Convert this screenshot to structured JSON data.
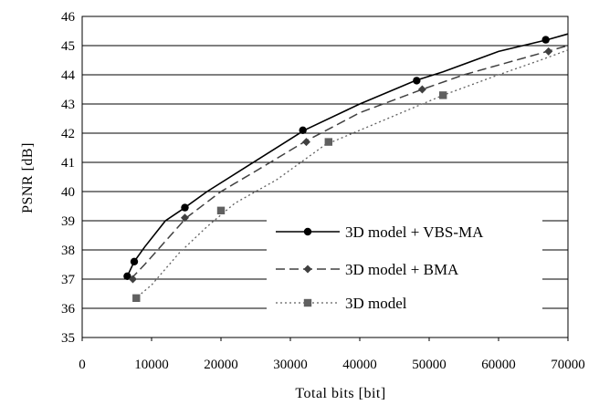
{
  "chart_data": {
    "type": "line",
    "title": "",
    "xlabel": "Total bits [bit]",
    "ylabel": "PSNR [dB]",
    "xlim": [
      0,
      70000
    ],
    "ylim": [
      35,
      46
    ],
    "x_ticks": [
      "0",
      "10000",
      "20000",
      "30000",
      "40000",
      "50000",
      "60000",
      "70000"
    ],
    "y_ticks": [
      "35",
      "36",
      "37",
      "38",
      "39",
      "40",
      "41",
      "42",
      "43",
      "44",
      "45",
      "46"
    ],
    "grid": "horizontal",
    "legend_position": "lower-right",
    "series": [
      {
        "name": "3D model + VBS-MA",
        "style": "solid",
        "marker": "circle",
        "color": "#000000",
        "line": [
          [
            6500,
            37.1
          ],
          [
            7500,
            37.6
          ],
          [
            9000,
            38.1
          ],
          [
            12000,
            39.0
          ],
          [
            14500,
            39.4
          ],
          [
            18000,
            40.0
          ],
          [
            24000,
            40.9
          ],
          [
            30000,
            41.8
          ],
          [
            32000,
            42.1
          ],
          [
            40000,
            43.0
          ],
          [
            48000,
            43.8
          ],
          [
            52000,
            44.1
          ],
          [
            60000,
            44.8
          ],
          [
            67000,
            45.2
          ],
          [
            70000,
            45.4
          ]
        ],
        "markers": [
          [
            6500,
            37.1
          ],
          [
            7500,
            37.6
          ],
          [
            14800,
            39.45
          ],
          [
            31800,
            42.1
          ],
          [
            48200,
            43.8
          ],
          [
            66800,
            45.2
          ]
        ]
      },
      {
        "name": "3D model + BMA",
        "style": "dashed",
        "marker": "diamond",
        "color": "#404040",
        "line": [
          [
            7000,
            37.0
          ],
          [
            9000,
            37.5
          ],
          [
            12000,
            38.3
          ],
          [
            15000,
            39.1
          ],
          [
            20000,
            40.0
          ],
          [
            25000,
            40.7
          ],
          [
            32000,
            41.7
          ],
          [
            40000,
            42.7
          ],
          [
            49000,
            43.5
          ],
          [
            55000,
            44.0
          ],
          [
            61000,
            44.4
          ],
          [
            67000,
            44.8
          ],
          [
            70000,
            45.0
          ]
        ],
        "markers": [
          [
            7300,
            37.0
          ],
          [
            14800,
            39.1
          ],
          [
            32300,
            41.7
          ],
          [
            49000,
            43.5
          ],
          [
            67200,
            44.8
          ]
        ]
      },
      {
        "name": "3D model",
        "style": "dotted",
        "marker": "square",
        "color": "#606060",
        "line": [
          [
            7500,
            36.3
          ],
          [
            10000,
            36.8
          ],
          [
            14000,
            37.9
          ],
          [
            18000,
            38.8
          ],
          [
            22000,
            39.6
          ],
          [
            28000,
            40.4
          ],
          [
            35000,
            41.6
          ],
          [
            44000,
            42.5
          ],
          [
            52000,
            43.3
          ],
          [
            60000,
            44.0
          ],
          [
            66000,
            44.5
          ],
          [
            70000,
            44.85
          ]
        ],
        "markers": [
          [
            7800,
            36.35
          ],
          [
            20000,
            39.35
          ],
          [
            35500,
            41.7
          ],
          [
            52000,
            43.3
          ]
        ]
      }
    ]
  }
}
